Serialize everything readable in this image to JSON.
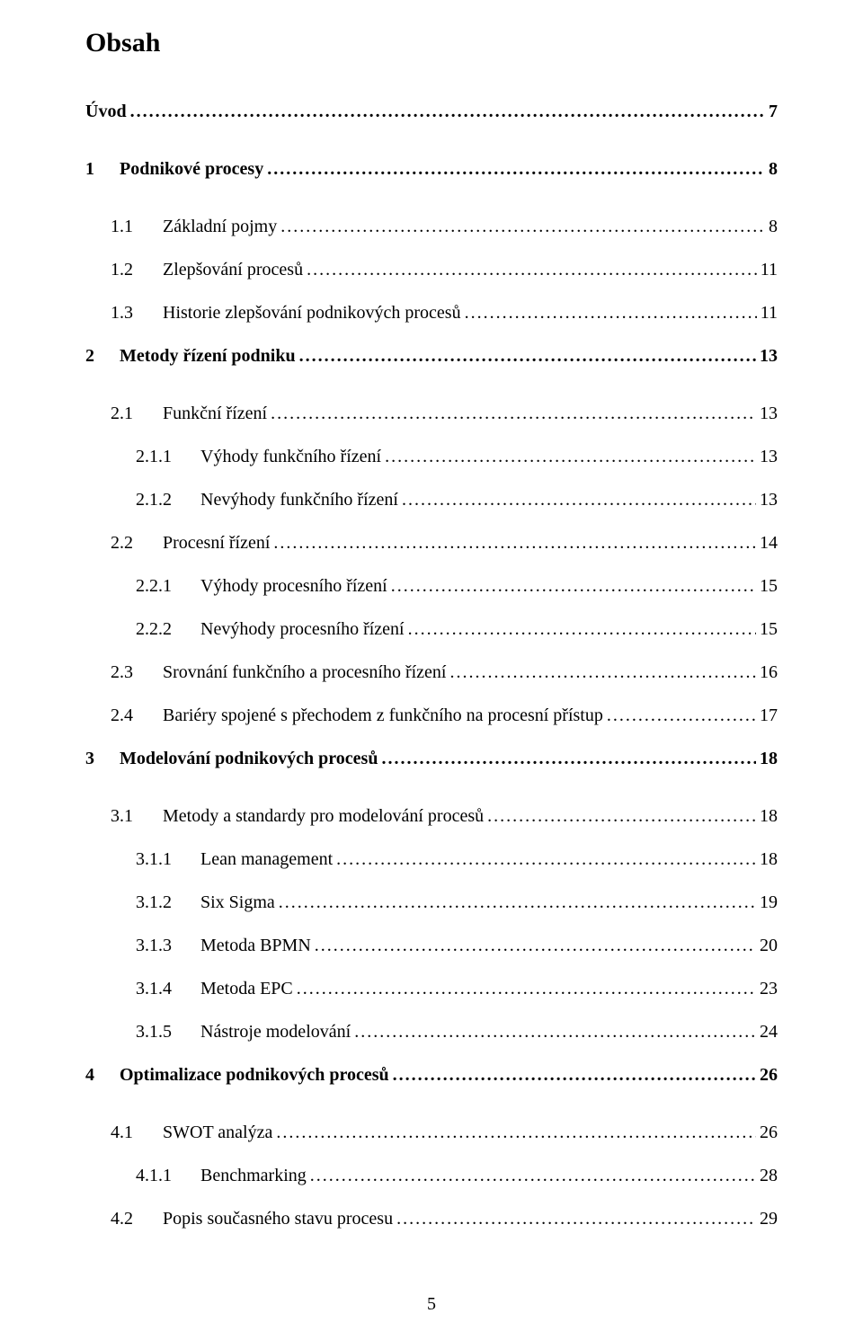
{
  "doc": {
    "title": "Obsah",
    "page_number": "5",
    "entries": [
      {
        "depth": 0,
        "bold": true,
        "num": "",
        "label": "Úvod",
        "page": "7"
      },
      {
        "depth": 0,
        "bold": true,
        "num": "1",
        "label": "Podnikové procesy",
        "page": "8"
      },
      {
        "depth": 1,
        "bold": false,
        "num": "1.1",
        "label": "Základní pojmy",
        "page": "8"
      },
      {
        "depth": 1,
        "bold": false,
        "num": "1.2",
        "label": "Zlepšování procesů",
        "page": "11"
      },
      {
        "depth": 1,
        "bold": false,
        "num": "1.3",
        "label": "Historie zlepšování podnikových procesů",
        "page": "11"
      },
      {
        "depth": 0,
        "bold": true,
        "num": "2",
        "label": "Metody řízení podniku",
        "page": "13"
      },
      {
        "depth": 1,
        "bold": false,
        "num": "2.1",
        "label": "Funkční řízení",
        "page": "13"
      },
      {
        "depth": 2,
        "bold": false,
        "num": "2.1.1",
        "label": "Výhody funkčního řízení",
        "page": "13"
      },
      {
        "depth": 2,
        "bold": false,
        "num": "2.1.2",
        "label": "Nevýhody funkčního řízení",
        "page": "13"
      },
      {
        "depth": 1,
        "bold": false,
        "num": "2.2",
        "label": "Procesní řízení",
        "page": "14"
      },
      {
        "depth": 2,
        "bold": false,
        "num": "2.2.1",
        "label": "Výhody procesního řízení",
        "page": "15"
      },
      {
        "depth": 2,
        "bold": false,
        "num": "2.2.2",
        "label": "Nevýhody procesního řízení",
        "page": "15"
      },
      {
        "depth": 1,
        "bold": false,
        "num": "2.3",
        "label": "Srovnání funkčního a procesního řízení",
        "page": "16"
      },
      {
        "depth": 1,
        "bold": false,
        "num": "2.4",
        "label": "Bariéry spojené s přechodem z funkčního na procesní přístup",
        "page": "17"
      },
      {
        "depth": 0,
        "bold": true,
        "num": "3",
        "label": "Modelování podnikových procesů",
        "page": "18"
      },
      {
        "depth": 1,
        "bold": false,
        "num": "3.1",
        "label": "Metody a standardy pro modelování procesů",
        "page": "18"
      },
      {
        "depth": 2,
        "bold": false,
        "num": "3.1.1",
        "label": "Lean management",
        "page": "18"
      },
      {
        "depth": 2,
        "bold": false,
        "num": "3.1.2",
        "label": "Six Sigma",
        "page": "19"
      },
      {
        "depth": 2,
        "bold": false,
        "num": "3.1.3",
        "label": "Metoda BPMN",
        "page": "20"
      },
      {
        "depth": 2,
        "bold": false,
        "num": "3.1.4",
        "label": "Metoda  EPC",
        "page": "23"
      },
      {
        "depth": 2,
        "bold": false,
        "num": "3.1.5",
        "label": "Nástroje modelování",
        "page": "24"
      },
      {
        "depth": 0,
        "bold": true,
        "num": "4",
        "label": "Optimalizace podnikových procesů",
        "page": "26"
      },
      {
        "depth": 1,
        "bold": false,
        "num": "4.1",
        "label": "SWOT analýza",
        "page": "26"
      },
      {
        "depth": 2,
        "bold": false,
        "num": "4.1.1",
        "label": "Benchmarking",
        "page": "28"
      },
      {
        "depth": 1,
        "bold": false,
        "num": "4.2",
        "label": "Popis současného stavu procesu",
        "page": "29"
      }
    ]
  }
}
